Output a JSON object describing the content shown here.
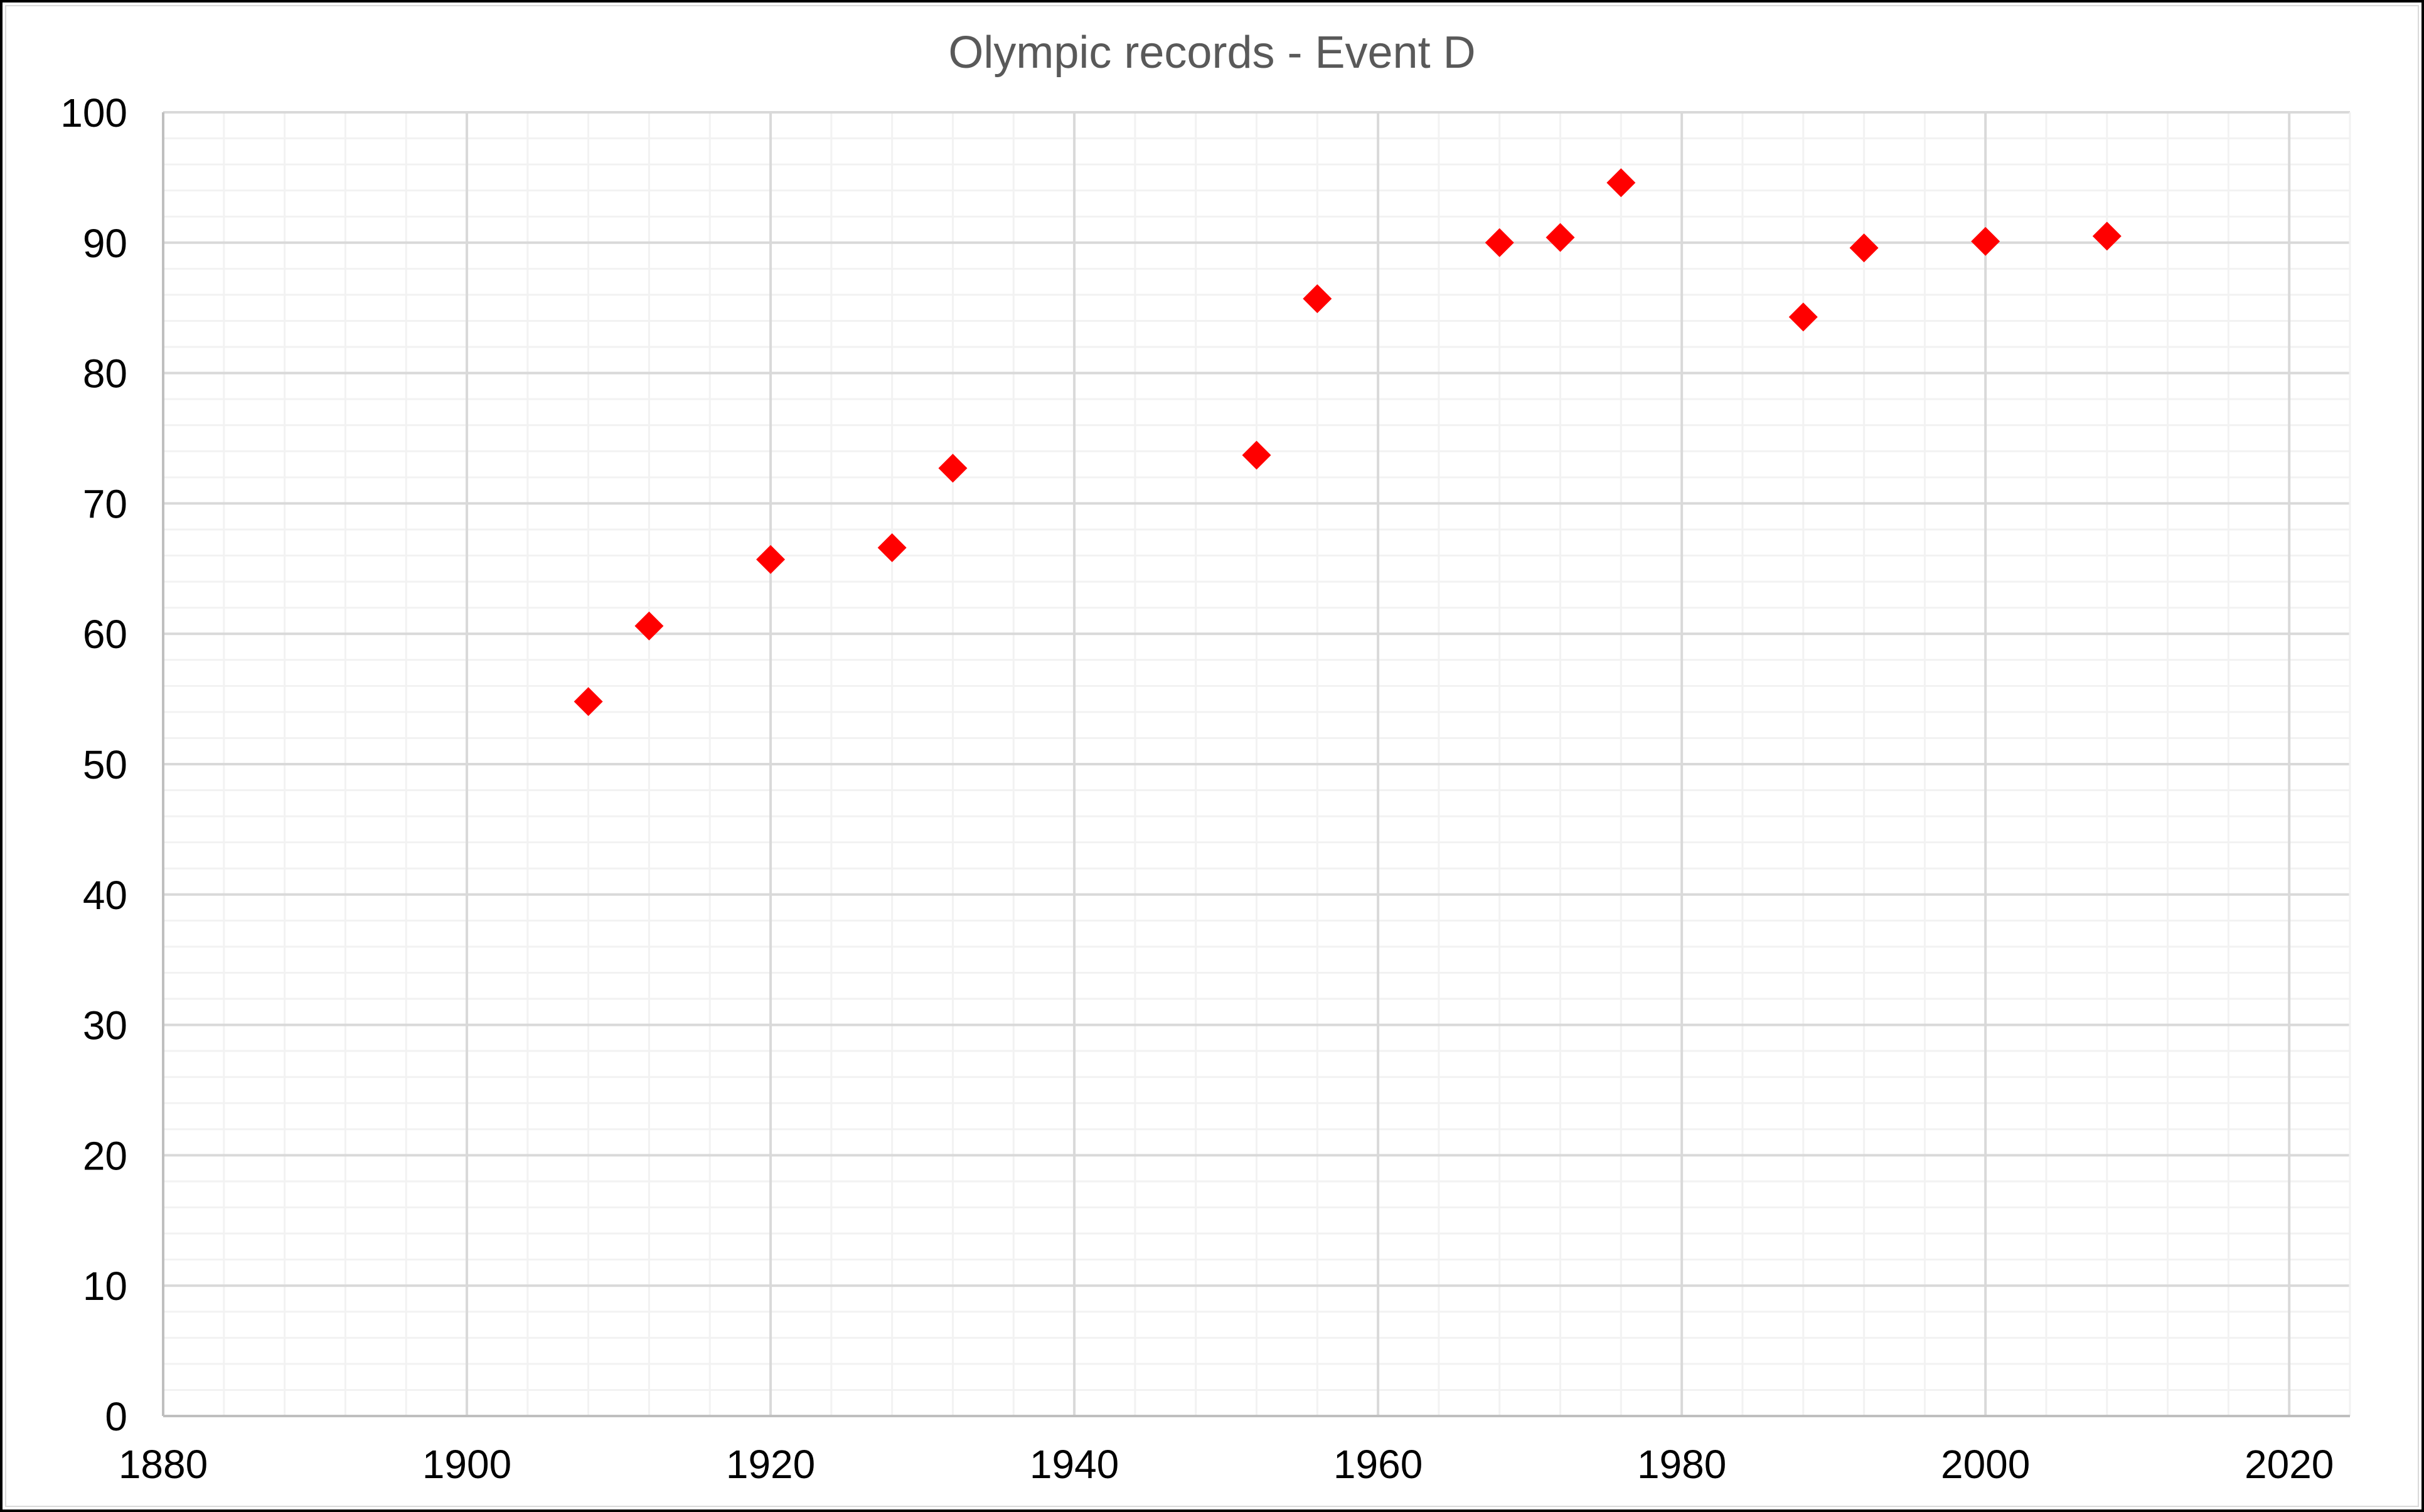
{
  "chart_data": {
    "type": "scatter",
    "title": "Olympic records - Event D",
    "xlabel": "",
    "ylabel": "",
    "xlim": [
      1880,
      2024
    ],
    "ylim": [
      0,
      100
    ],
    "x_ticks": [
      1880,
      1900,
      1920,
      1940,
      1960,
      1980,
      2000,
      2020
    ],
    "y_ticks": [
      0,
      10,
      20,
      30,
      40,
      50,
      60,
      70,
      80,
      90,
      100
    ],
    "x_minor_step": 4,
    "y_minor_step": 2,
    "grid": true,
    "legend": null,
    "marker": "diamond",
    "marker_color": "#ff0000",
    "series": [
      {
        "name": "Event D",
        "x": [
          1908,
          1912,
          1920,
          1928,
          1932,
          1952,
          1956,
          1968,
          1972,
          1976,
          1988,
          1992,
          2000,
          2008
        ],
        "y": [
          54.8,
          60.6,
          65.7,
          66.6,
          72.7,
          73.7,
          85.7,
          90.0,
          90.4,
          94.6,
          84.3,
          89.6,
          90.1,
          90.5
        ]
      }
    ]
  },
  "colors": {
    "title": "#595959",
    "major_grid": "#d9d9d9",
    "minor_grid": "#f2f2f2",
    "axis": "#bfbfbf",
    "marker": "#ff0000"
  }
}
